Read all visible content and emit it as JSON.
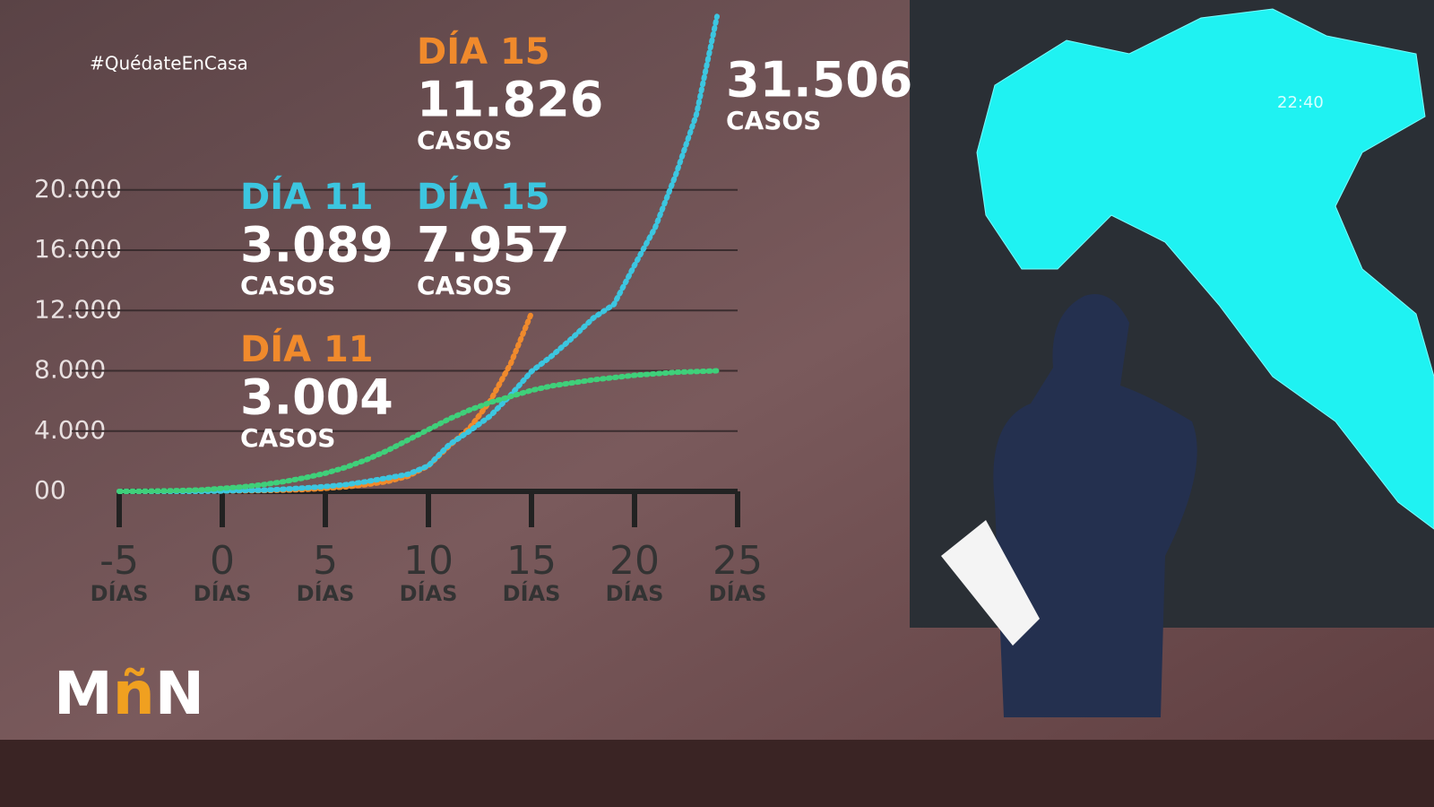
{
  "chart_data": {
    "type": "line",
    "hashtag": "#QuédateEnCasa",
    "clock": "22:40",
    "logo": [
      "M",
      "ñ",
      "N"
    ],
    "x_unit": "DÍAS",
    "xlim": [
      -5,
      25
    ],
    "xticks": [
      -5,
      0,
      5,
      10,
      15,
      20,
      25
    ],
    "ylim": [
      0,
      32000
    ],
    "yticks": [
      {
        "value": 0,
        "label": "00"
      },
      {
        "value": 4000,
        "label": "4.000"
      },
      {
        "value": 8000,
        "label": "8.000"
      },
      {
        "value": 12000,
        "label": "12.000"
      },
      {
        "value": 16000,
        "label": "16.000"
      },
      {
        "value": 20000,
        "label": "20.000"
      }
    ],
    "grid": true,
    "series": [
      {
        "color": "#f08a2c",
        "x": [
          -5,
          -4,
          -3,
          -2,
          -1,
          0,
          1,
          2,
          3,
          4,
          5,
          6,
          7,
          8,
          9,
          10,
          11,
          12,
          13,
          14,
          15
        ],
        "values": [
          0,
          0,
          2,
          5,
          10,
          20,
          30,
          50,
          80,
          120,
          200,
          300,
          450,
          650,
          1000,
          1700,
          3004,
          4200,
          6000,
          8500,
          11826
        ]
      },
      {
        "color": "#3cc6e0",
        "x": [
          -5,
          -4,
          -3,
          -2,
          -1,
          0,
          1,
          2,
          3,
          4,
          5,
          6,
          7,
          8,
          9,
          10,
          11,
          12,
          13,
          14,
          15,
          16,
          17,
          18,
          19,
          20,
          21,
          22,
          23,
          24
        ],
        "values": [
          0,
          0,
          0,
          2,
          3,
          20,
          60,
          80,
          150,
          230,
          320,
          450,
          650,
          890,
          1130,
          1700,
          3089,
          4000,
          5000,
          6400,
          7957,
          9000,
          10200,
          11500,
          12400,
          15000,
          17500,
          21000,
          25000,
          31506
        ]
      },
      {
        "color": "#3fd07a",
        "x": [
          -5,
          -4,
          -3,
          -2,
          -1,
          0,
          1,
          2,
          3,
          4,
          5,
          6,
          7,
          8,
          9,
          10,
          11,
          12,
          13,
          14,
          15,
          16,
          17,
          18,
          19,
          20,
          21,
          22,
          23,
          24
        ],
        "values": [
          0,
          10,
          30,
          60,
          100,
          200,
          300,
          450,
          650,
          900,
          1200,
          1600,
          2100,
          2700,
          3400,
          4100,
          4800,
          5400,
          5900,
          6300,
          6700,
          7000,
          7200,
          7400,
          7550,
          7700,
          7800,
          7900,
          7950,
          8000
        ]
      }
    ],
    "annotations": [
      {
        "day": "DÍA 15",
        "value": "11.826",
        "unit": "CASOS",
        "color": "#f08a2c"
      },
      {
        "day": "DÍA 11",
        "value": "3.089",
        "unit": "CASOS",
        "color": "#3cc6e0"
      },
      {
        "day": "DÍA 15",
        "value": "7.957",
        "unit": "CASOS",
        "color": "#3cc6e0"
      },
      {
        "day": "DÍA 11",
        "value": "3.004",
        "unit": "CASOS",
        "color": "#f08a2c"
      },
      {
        "value": "31.506",
        "unit": "CASOS",
        "color": "#ffffff"
      }
    ]
  }
}
